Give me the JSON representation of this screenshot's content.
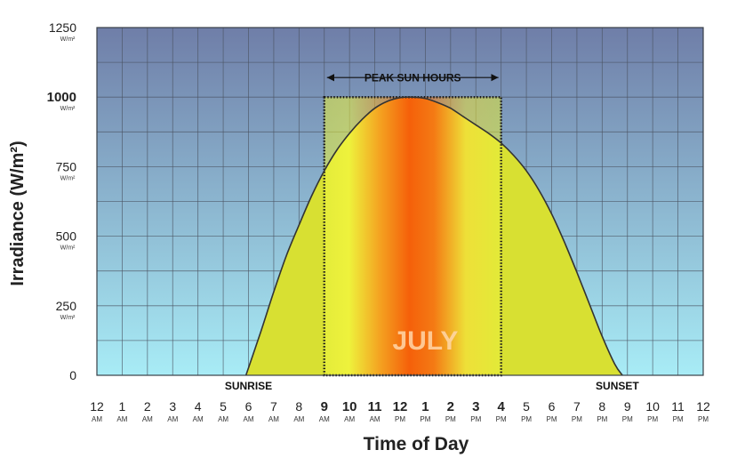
{
  "chart_data": {
    "type": "area",
    "xlabel": "Time of Day",
    "ylabel": "Irradiance (W/m²)",
    "y_unit_label": "W/m²",
    "ylim": [
      0,
      1250
    ],
    "yticks": [
      0,
      250,
      500,
      750,
      1000,
      1250
    ],
    "y_bold_tick": 1000,
    "xlim": [
      0,
      24
    ],
    "x_ticks": [
      {
        "hour": "12",
        "period": "AM"
      },
      {
        "hour": "1",
        "period": "AM"
      },
      {
        "hour": "2",
        "period": "AM"
      },
      {
        "hour": "3",
        "period": "AM"
      },
      {
        "hour": "4",
        "period": "AM"
      },
      {
        "hour": "5",
        "period": "AM"
      },
      {
        "hour": "6",
        "period": "AM"
      },
      {
        "hour": "7",
        "period": "AM"
      },
      {
        "hour": "8",
        "period": "AM"
      },
      {
        "hour": "9",
        "period": "AM"
      },
      {
        "hour": "10",
        "period": "AM"
      },
      {
        "hour": "11",
        "period": "AM"
      },
      {
        "hour": "12",
        "period": "PM"
      },
      {
        "hour": "1",
        "period": "PM"
      },
      {
        "hour": "2",
        "period": "PM"
      },
      {
        "hour": "3",
        "period": "PM"
      },
      {
        "hour": "4",
        "period": "PM"
      },
      {
        "hour": "5",
        "period": "PM"
      },
      {
        "hour": "6",
        "period": "PM"
      },
      {
        "hour": "7",
        "period": "PM"
      },
      {
        "hour": "8",
        "period": "PM"
      },
      {
        "hour": "9",
        "period": "PM"
      },
      {
        "hour": "10",
        "period": "PM"
      },
      {
        "hour": "11",
        "period": "PM"
      },
      {
        "hour": "12",
        "period": "PM"
      }
    ],
    "bold_x_hours": [
      9,
      10,
      11,
      12,
      13,
      14,
      15,
      16
    ],
    "grid": true,
    "series": [
      {
        "x": [
          5.9,
          6.5,
          7,
          7.5,
          8,
          8.5,
          9,
          9.5,
          10,
          10.5,
          11,
          11.5,
          12,
          12.5,
          13,
          13.5,
          14,
          14.5,
          15,
          15.5,
          16,
          16.5,
          17,
          17.5,
          18,
          18.5,
          19,
          19.5,
          20,
          20.5,
          20.8
        ],
        "y": [
          0,
          160,
          300,
          430,
          540,
          645,
          735,
          810,
          870,
          920,
          960,
          985,
          998,
          1000,
          995,
          980,
          960,
          930,
          900,
          870,
          835,
          790,
          735,
          665,
          580,
          480,
          370,
          255,
          140,
          40,
          0
        ]
      }
    ],
    "peak_sun_hours": {
      "label": "PEAK SUN HOURS",
      "start": 9,
      "end": 16,
      "level": 1000
    },
    "annotations": [
      {
        "text": "SUNRISE",
        "x": 6
      },
      {
        "text": "SUNSET",
        "x": 20.6
      }
    ],
    "watermark": "JULY",
    "colors": {
      "bg_top": "#6f7ea8",
      "bg_bottom": "#a8ecf6",
      "area_fill": "#d8e032",
      "peak_center": "#f56a0c",
      "peak_edge": "#e9ee3a",
      "grid": "#4a5260",
      "curve": "#333333"
    }
  }
}
